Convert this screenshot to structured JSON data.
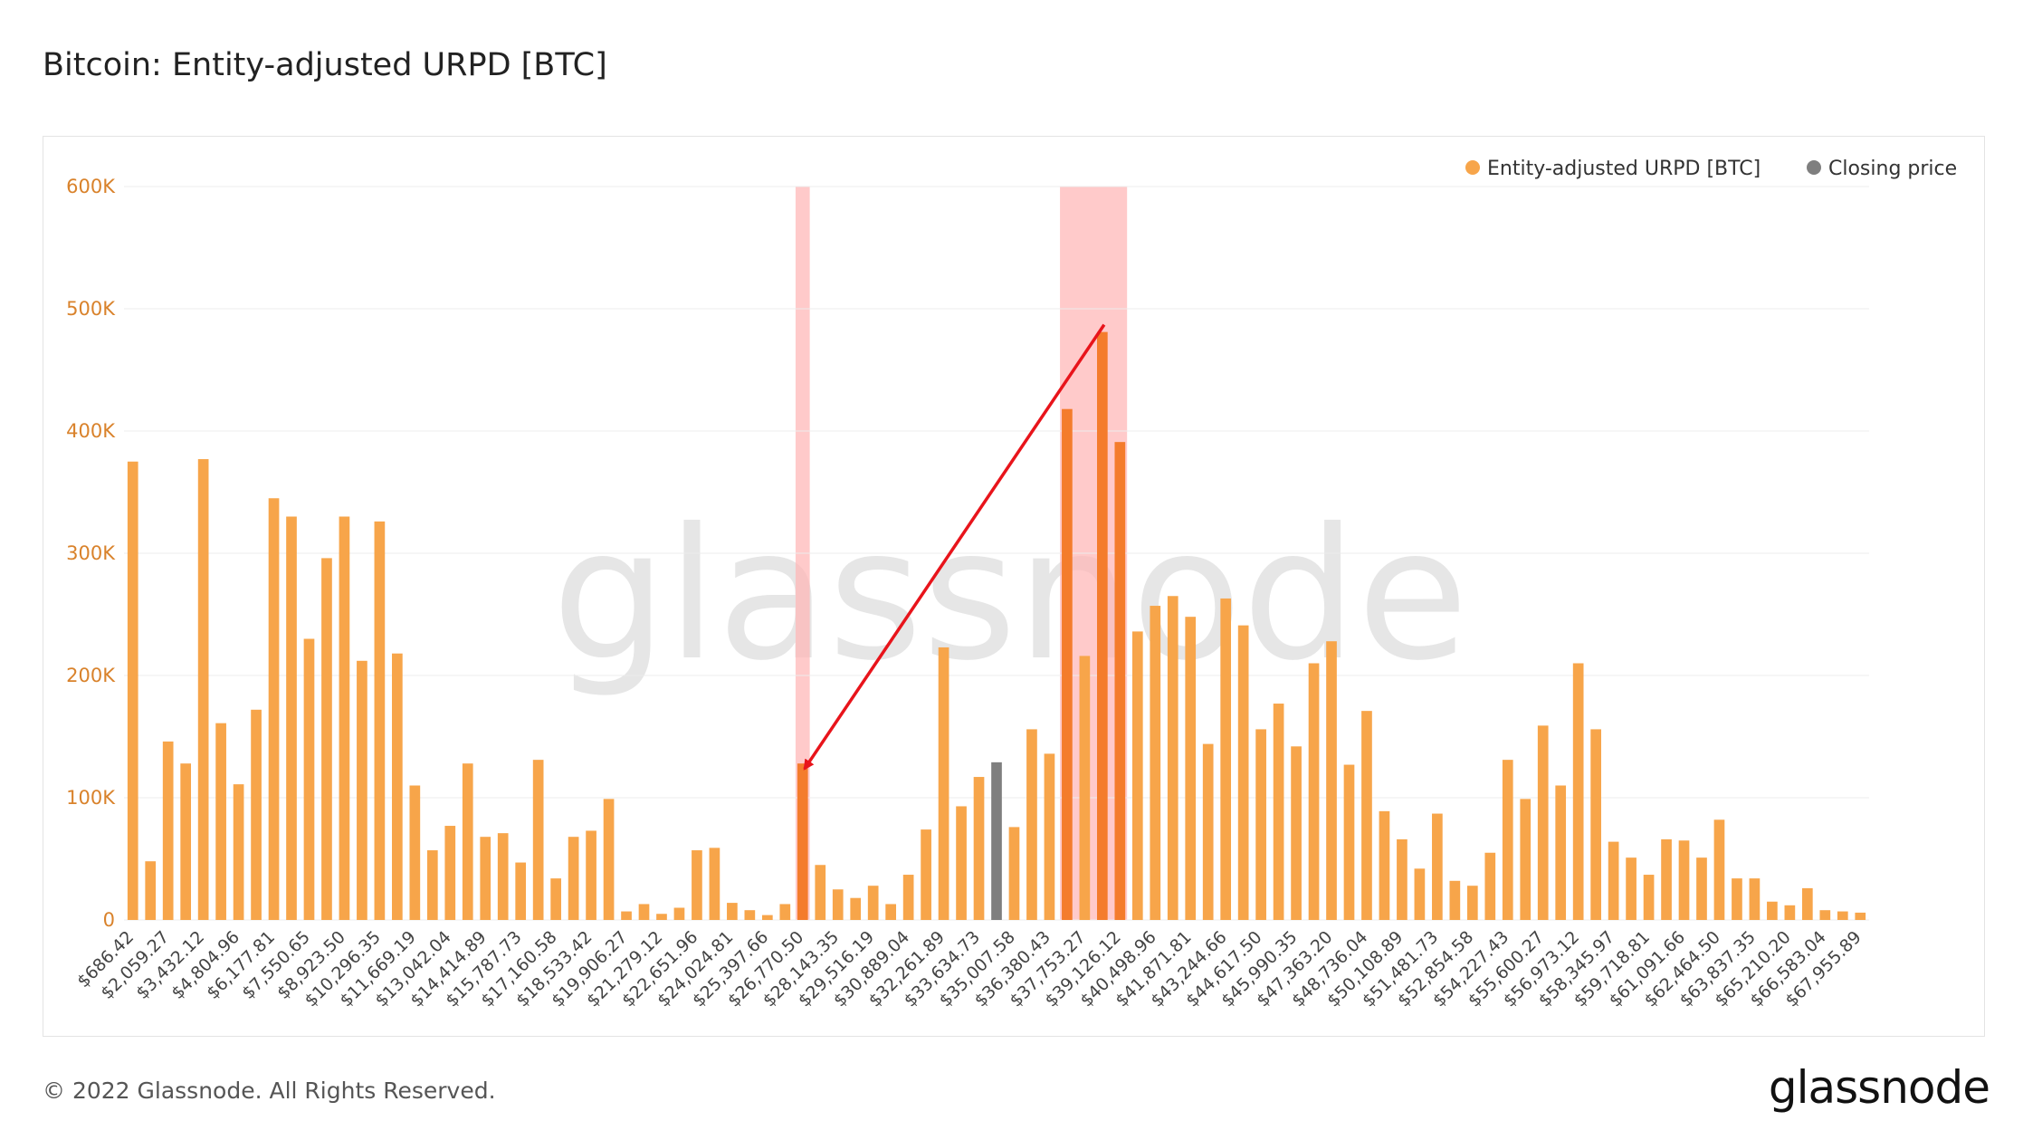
{
  "header": {
    "title": "Bitcoin: Entity-adjusted URPD [BTC]"
  },
  "footer": {
    "copyright": "© 2022 Glassnode. All Rights Reserved.",
    "logo": "glassnode"
  },
  "watermark": "glassnode",
  "colors": {
    "bar": "#f7a54a",
    "bar_highlight": "#f47c2c",
    "closing": "#7f7f7f",
    "band": "#ffb3b3",
    "arrow": "#e8141b",
    "tick_y": "#d9822b"
  },
  "chart_data": {
    "type": "bar",
    "title": "Bitcoin: Entity-adjusted URPD [BTC]",
    "ylim": [
      0,
      600000
    ],
    "yticks": [
      0,
      100000,
      200000,
      300000,
      400000,
      500000,
      600000
    ],
    "ytick_labels": [
      "0",
      "100K",
      "200K",
      "300K",
      "400K",
      "500K",
      "600K"
    ],
    "grid": true,
    "legend_position": "top-right",
    "series": [
      {
        "name": "Entity-adjusted URPD [BTC]",
        "color": "#f7a54a"
      },
      {
        "name": "Closing price",
        "color": "#7f7f7f"
      }
    ],
    "x_tick_labels": [
      "$686.42",
      "$2,059.27",
      "$3,432.12",
      "$4,804.96",
      "$6,177.81",
      "$7,550.65",
      "$8,923.50",
      "$10,296.35",
      "$11,669.19",
      "$13,042.04",
      "$14,414.89",
      "$15,787.73",
      "$17,160.58",
      "$18,533.42",
      "$19,906.27",
      "$21,279.12",
      "$22,651.96",
      "$24,024.81",
      "$25,397.66",
      "$26,770.50",
      "$28,143.35",
      "$29,516.19",
      "$30,889.04",
      "$32,261.89",
      "$33,634.73",
      "$35,007.58",
      "$36,380.43",
      "$37,753.27",
      "$39,126.12",
      "$40,498.96",
      "$41,871.81",
      "$43,244.66",
      "$44,617.50",
      "$45,990.35",
      "$47,363.20",
      "$48,736.04",
      "$50,108.89",
      "$51,481.73",
      "$52,854.58",
      "$54,227.43",
      "$55,600.27",
      "$56,973.12",
      "$58,345.97",
      "$59,718.81",
      "$61,091.66",
      "$62,464.50",
      "$63,837.35",
      "$65,210.20",
      "$66,583.04",
      "$67,955.89"
    ],
    "values": [
      375000,
      48000,
      146000,
      128000,
      377000,
      161000,
      111000,
      172000,
      345000,
      330000,
      230000,
      296000,
      330000,
      212000,
      326000,
      218000,
      110000,
      57000,
      77000,
      128000,
      68000,
      71000,
      47000,
      131000,
      34000,
      68000,
      73000,
      99000,
      7000,
      13000,
      5000,
      10000,
      57000,
      59000,
      14000,
      8000,
      4000,
      13000,
      128000,
      45000,
      25000,
      18000,
      28000,
      13000,
      37000,
      74000,
      223000,
      93000,
      117000,
      129000,
      76000,
      156000,
      136000,
      418000,
      216000,
      481000,
      391000,
      236000,
      257000,
      265000,
      248000,
      144000,
      263000,
      241000,
      156000,
      177000,
      142000,
      210000,
      228000,
      127000,
      171000,
      89000,
      66000,
      42000,
      87000,
      32000,
      28000,
      55000,
      131000,
      99000,
      159000,
      110000,
      210000,
      156000,
      64000,
      51000,
      37000,
      66000,
      65000,
      51000,
      82000,
      34000,
      34000,
      15000,
      12000,
      26000,
      8000,
      7000,
      6000
    ],
    "closing_price_index": 49,
    "highlighted_indices": [
      38,
      53,
      55,
      56
    ],
    "highlight_bands": [
      {
        "from_index": 38,
        "to_index": 38
      },
      {
        "from_index": 53,
        "to_index": 56
      }
    ],
    "annotations": [
      {
        "type": "arrow",
        "from_index": 55,
        "from_value": 481000,
        "to_index": 38,
        "to_value": 128000
      }
    ]
  }
}
